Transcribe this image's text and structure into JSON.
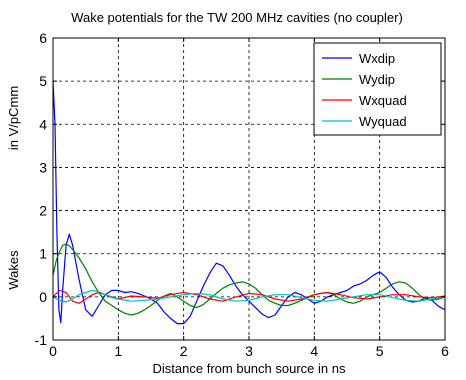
{
  "chart_data": {
    "type": "line",
    "title": "Wake potentials for the TW 200 MHz cavities (no coupler)",
    "xlabel": "Distance from bunch source in ns",
    "ylabel_lines": [
      "Wakes",
      "in V/pCmm"
    ],
    "xlim": [
      0,
      6
    ],
    "ylim": [
      -1,
      6
    ],
    "xticks": [
      "0",
      "1",
      "2",
      "3",
      "4",
      "5",
      "6"
    ],
    "yticks": [
      "-1",
      "0",
      "1",
      "2",
      "3",
      "4",
      "5",
      "6"
    ],
    "grid": true,
    "legend_position": "top-right",
    "series": [
      {
        "name": "Wxdip",
        "color": "#0000ff",
        "x": [
          0,
          0.03,
          0.06,
          0.09,
          0.12,
          0.15,
          0.2,
          0.25,
          0.3,
          0.4,
          0.5,
          0.6,
          0.7,
          0.8,
          0.9,
          1.0,
          1.1,
          1.2,
          1.3,
          1.4,
          1.5,
          1.6,
          1.7,
          1.8,
          1.9,
          2.0,
          2.1,
          2.2,
          2.3,
          2.4,
          2.5,
          2.6,
          2.7,
          2.8,
          2.9,
          3.0,
          3.1,
          3.2,
          3.3,
          3.4,
          3.5,
          3.6,
          3.7,
          3.8,
          3.9,
          4.0,
          4.1,
          4.2,
          4.3,
          4.4,
          4.5,
          4.6,
          4.7,
          4.8,
          4.9,
          5.0,
          5.1,
          5.2,
          5.3,
          5.4,
          5.5,
          5.6,
          5.7,
          5.8,
          5.9,
          6.0
        ],
        "y": [
          5.0,
          4.0,
          1.5,
          -0.3,
          -0.6,
          0.2,
          1.2,
          1.45,
          1.2,
          0.4,
          -0.3,
          -0.45,
          -0.2,
          0.05,
          0.15,
          0.15,
          0.1,
          0.12,
          0.08,
          0.02,
          -0.05,
          -0.15,
          -0.35,
          -0.5,
          -0.62,
          -0.62,
          -0.45,
          -0.1,
          0.25,
          0.55,
          0.78,
          0.72,
          0.5,
          0.25,
          0.05,
          -0.1,
          -0.25,
          -0.4,
          -0.48,
          -0.42,
          -0.2,
          0.0,
          0.1,
          0.05,
          -0.05,
          -0.15,
          -0.1,
          0.0,
          0.05,
          0.1,
          0.15,
          0.25,
          0.3,
          0.38,
          0.5,
          0.58,
          0.45,
          0.22,
          0.05,
          -0.08,
          -0.12,
          -0.1,
          -0.02,
          -0.08,
          -0.22,
          -0.3
        ]
      },
      {
        "name": "Wydip",
        "color": "#008000",
        "x": [
          0,
          0.05,
          0.1,
          0.15,
          0.2,
          0.25,
          0.3,
          0.4,
          0.5,
          0.6,
          0.7,
          0.8,
          0.9,
          1.0,
          1.1,
          1.2,
          1.3,
          1.4,
          1.5,
          1.6,
          1.7,
          1.8,
          1.9,
          2.0,
          2.1,
          2.2,
          2.3,
          2.4,
          2.5,
          2.6,
          2.7,
          2.8,
          2.9,
          3.0,
          3.1,
          3.2,
          3.3,
          3.4,
          3.5,
          3.6,
          3.7,
          3.8,
          3.9,
          4.0,
          4.1,
          4.2,
          4.3,
          4.4,
          4.5,
          4.6,
          4.7,
          4.8,
          4.9,
          5.0,
          5.1,
          5.2,
          5.3,
          5.4,
          5.5,
          5.6,
          5.7,
          5.8,
          5.9,
          6.0
        ],
        "y": [
          0.5,
          0.85,
          1.05,
          1.2,
          1.22,
          1.18,
          1.1,
          0.9,
          0.65,
          0.35,
          0.1,
          -0.1,
          -0.2,
          -0.3,
          -0.38,
          -0.42,
          -0.38,
          -0.3,
          -0.2,
          -0.08,
          0.02,
          0.08,
          0.0,
          -0.1,
          -0.2,
          -0.25,
          -0.18,
          -0.05,
          0.08,
          0.2,
          0.28,
          0.32,
          0.35,
          0.3,
          0.2,
          0.05,
          -0.08,
          -0.15,
          -0.2,
          -0.2,
          -0.15,
          -0.08,
          -0.02,
          0.05,
          0.08,
          0.1,
          0.05,
          -0.05,
          -0.12,
          -0.15,
          -0.1,
          0.0,
          0.05,
          0.1,
          0.2,
          0.3,
          0.35,
          0.32,
          0.2,
          0.05,
          -0.05,
          -0.08,
          -0.05,
          0.0
        ]
      },
      {
        "name": "Wxquad",
        "color": "#ff0000",
        "x": [
          0,
          0.1,
          0.2,
          0.3,
          0.4,
          0.5,
          0.6,
          0.7,
          0.8,
          0.9,
          1.0,
          1.2,
          1.4,
          1.6,
          1.8,
          2.0,
          2.2,
          2.4,
          2.6,
          2.8,
          3.0,
          3.2,
          3.4,
          3.6,
          3.8,
          4.0,
          4.2,
          4.4,
          4.6,
          4.8,
          5.0,
          5.2,
          5.4,
          5.6,
          5.8,
          6.0
        ],
        "y": [
          0.0,
          0.15,
          0.1,
          -0.1,
          -0.15,
          -0.05,
          0.05,
          0.1,
          0.05,
          0.0,
          -0.05,
          0.02,
          0.0,
          -0.03,
          0.05,
          0.1,
          0.05,
          -0.05,
          -0.1,
          0.0,
          0.08,
          0.05,
          -0.05,
          -0.1,
          -0.05,
          0.05,
          0.1,
          0.05,
          -0.02,
          -0.05,
          0.0,
          0.05,
          0.05,
          0.0,
          -0.02,
          0.02
        ]
      },
      {
        "name": "Wyquad",
        "color": "#00c0c0",
        "x": [
          0,
          0.1,
          0.2,
          0.3,
          0.4,
          0.5,
          0.6,
          0.7,
          0.8,
          0.9,
          1.0,
          1.2,
          1.4,
          1.6,
          1.8,
          2.0,
          2.2,
          2.4,
          2.6,
          2.8,
          3.0,
          3.2,
          3.4,
          3.6,
          3.8,
          4.0,
          4.2,
          4.4,
          4.6,
          4.8,
          5.0,
          5.2,
          5.4,
          5.6,
          5.8,
          6.0
        ],
        "y": [
          0.0,
          -0.08,
          -0.12,
          -0.05,
          0.05,
          0.1,
          0.15,
          0.12,
          0.05,
          -0.02,
          -0.05,
          -0.1,
          -0.08,
          -0.05,
          0.0,
          0.05,
          0.08,
          0.05,
          -0.05,
          -0.1,
          -0.08,
          0.0,
          0.05,
          0.05,
          -0.02,
          -0.08,
          -0.1,
          -0.05,
          0.0,
          0.05,
          0.05,
          -0.02,
          -0.08,
          -0.1,
          -0.05,
          0.0
        ]
      }
    ]
  }
}
